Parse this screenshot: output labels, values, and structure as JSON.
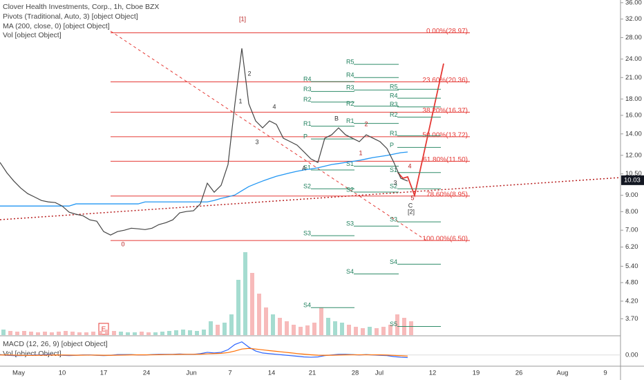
{
  "chart_data": {
    "type": "line",
    "log_scale": true,
    "legend": [
      "Clover Health Investments, Corp., 1h, Cboe BZX",
      "Pivots (Traditional, Auto, 3) [object Object]",
      "MA (200, close, 0) [object Object]",
      "Vol [object Object]"
    ],
    "ylim": [
      3.29,
      36.7
    ],
    "yticks": [
      {
        "value": 36,
        "label": "36.00"
      },
      {
        "value": 32,
        "label": "32.00"
      },
      {
        "value": 28,
        "label": "28.00"
      },
      {
        "value": 24,
        "label": "24.00"
      },
      {
        "value": 21,
        "label": "21.00"
      },
      {
        "value": 18,
        "label": "18.00"
      },
      {
        "value": 16,
        "label": "16.00"
      },
      {
        "value": 14,
        "label": "14.00"
      },
      {
        "value": 12,
        "label": "12.00"
      },
      {
        "value": 10.5,
        "label": "10.50"
      },
      {
        "value": 9,
        "label": "9.00"
      },
      {
        "value": 8,
        "label": "8.00"
      },
      {
        "value": 7,
        "label": "7.00"
      },
      {
        "value": 6.2,
        "label": "6.20"
      },
      {
        "value": 5.4,
        "label": "5.40"
      },
      {
        "value": 4.8,
        "label": "4.80"
      },
      {
        "value": 4.2,
        "label": "4.20"
      },
      {
        "value": 3.7,
        "label": "3.70"
      }
    ],
    "last_price": {
      "value": 10.03,
      "label": "10.03"
    },
    "x_labels": [
      "May",
      "10",
      "17",
      "24",
      "Jun",
      "7",
      "14",
      "21",
      "28",
      "Jul",
      "12",
      "19",
      "26",
      "Aug",
      "9"
    ],
    "price": {
      "color": "#444444",
      "values": [
        11.4,
        10.58,
        9.97,
        9.48,
        9.11,
        8.89,
        8.67,
        8.58,
        8.54,
        8.33,
        7.97,
        7.85,
        7.77,
        7.54,
        7.47,
        6.93,
        6.76,
        6.93,
        7.0,
        7.1,
        7.07,
        7.03,
        7.1,
        7.29,
        7.39,
        7.54,
        7.93,
        8.01,
        8.05,
        8.46,
        9.82,
        9.2,
        9.67,
        11.23,
        17.4,
        25.92,
        17.4,
        15.37,
        14.62,
        15.37,
        14.99,
        13.57,
        13.24,
        12.91,
        12.29,
        11.69,
        11.4,
        13.57,
        13.91,
        14.62,
        13.91,
        13.57,
        13.24,
        13.91,
        13.57,
        13.24,
        12.6,
        11.4,
        10.17,
        9.97
      ]
    },
    "ma": {
      "color": "#2196f3",
      "values": [
        8.33,
        8.33,
        8.33,
        8.33,
        8.33,
        8.33,
        8.33,
        8.33,
        8.33,
        8.33,
        8.33,
        8.46,
        8.46,
        8.46,
        8.46,
        8.46,
        8.46,
        8.46,
        8.46,
        8.46,
        8.46,
        8.58,
        8.58,
        8.58,
        8.58,
        8.58,
        8.58,
        8.58,
        8.58,
        8.58,
        8.58,
        8.67,
        8.8,
        8.9,
        9.02,
        9.3,
        9.58,
        9.78,
        9.97,
        10.15,
        10.32,
        10.45,
        10.58,
        10.7,
        10.8,
        10.88,
        10.97,
        11.1,
        11.23,
        11.31,
        11.4,
        11.48,
        11.57,
        11.69,
        11.81,
        11.9,
        11.99,
        12.11,
        12.23,
        12.29
      ]
    },
    "volume": {
      "color": "#8fd3c4",
      "values": [
        8,
        6,
        5,
        6,
        5,
        4,
        5,
        4,
        5,
        6,
        5,
        4,
        4,
        5,
        6,
        8,
        6,
        5,
        4,
        4,
        5,
        4,
        4,
        5,
        6,
        7,
        8,
        7,
        6,
        8,
        20,
        15,
        18,
        30,
        80,
        120,
        90,
        60,
        40,
        30,
        25,
        20,
        15,
        12,
        14,
        18,
        40,
        25,
        20,
        18,
        15,
        12,
        10,
        12,
        10,
        12,
        15,
        30,
        25,
        20
      ]
    },
    "fib_levels": [
      {
        "label": "0.00%(28.97)",
        "value": 28.97
      },
      {
        "label": "23.60%(20.36)",
        "value": 20.36
      },
      {
        "label": "38.20%(16.37)",
        "value": 16.37
      },
      {
        "label": "50.00%(13.72)",
        "value": 13.72
      },
      {
        "label": "61.80%(11.50)",
        "value": 11.5
      },
      {
        "label": "78.60%(8.95)",
        "value": 8.95
      },
      {
        "label": "100.00%(6.50)",
        "value": 6.5
      }
    ],
    "pivots": [
      {
        "levels": [
          {
            "label": "R4",
            "value": 20.4
          },
          {
            "label": "R3",
            "value": 19.0
          },
          {
            "label": "R2",
            "value": 17.6
          },
          {
            "label": "R1",
            "value": 14.8
          },
          {
            "label": "P",
            "value": 13.5
          },
          {
            "label": "S1",
            "value": 10.8
          },
          {
            "label": "S2",
            "value": 9.43
          },
          {
            "label": "S3",
            "value": 6.73
          },
          {
            "label": "S4",
            "value": 4.01
          }
        ]
      },
      {
        "levels": [
          {
            "label": "R5",
            "value": 23.1
          },
          {
            "label": "R4",
            "value": 21.0
          },
          {
            "label": "R3",
            "value": 19.2
          },
          {
            "label": "R2",
            "value": 17.1
          },
          {
            "label": "R1",
            "value": 15.1
          },
          {
            "label": "S1",
            "value": 11.1
          },
          {
            "label": "S2",
            "value": 9.21
          },
          {
            "label": "S3",
            "value": 7.21
          },
          {
            "label": "S4",
            "value": 5.11
          }
        ]
      },
      {
        "levels": [
          {
            "label": "R5",
            "value": 19.3
          },
          {
            "label": "R4",
            "value": 18.1
          },
          {
            "label": "R3",
            "value": 17.0
          },
          {
            "label": "R2",
            "value": 15.8
          },
          {
            "label": "R1",
            "value": 13.8
          },
          {
            "label": "P",
            "value": 12.7
          },
          {
            "label": "S1",
            "value": 10.6
          },
          {
            "label": "S2",
            "value": 9.43
          },
          {
            "label": "S3",
            "value": 7.43
          },
          {
            "label": "S4",
            "value": 5.48
          },
          {
            "label": "S5",
            "value": 3.5
          }
        ]
      }
    ],
    "wave_labels": [
      "[1]",
      "2",
      "1",
      "4",
      "3",
      "B",
      "A",
      "1",
      "2",
      "4",
      "3",
      "5",
      "C",
      "[2]",
      "0"
    ],
    "earnings_label": "E",
    "macd_title": "MACD (12, 26, 9) [object Object]",
    "macd_vol_title": "Vol [object Object]",
    "macd_ylim": [
      -1.5,
      2.5
    ],
    "macd_yticks": [
      {
        "value": 0,
        "label": "0.00"
      }
    ],
    "macd": {
      "color": "#2962ff",
      "values": [
        0.05,
        -0.05,
        -0.1,
        -0.1,
        -0.05,
        0,
        0,
        0.05,
        0,
        -0.05,
        -0.1,
        -0.05,
        0,
        0,
        -0.05,
        -0.1,
        -0.05,
        0.05,
        0.05,
        0.05,
        0,
        0,
        0.05,
        0.1,
        0.1,
        0.1,
        0.15,
        0.1,
        0.1,
        0.2,
        0.4,
        0.3,
        0.4,
        0.8,
        1.6,
        2.0,
        1.2,
        0.6,
        0.3,
        0.2,
        0.1,
        0,
        -0.1,
        -0.2,
        -0.3,
        -0.35,
        -0.3,
        -0.1,
        0,
        0.1,
        0.1,
        0.05,
        0,
        0.05,
        0,
        -0.05,
        -0.1,
        -0.25,
        -0.35,
        -0.4
      ]
    },
    "signal": {
      "color": "#ff6d00",
      "values": [
        0,
        0,
        -0.03,
        -0.05,
        -0.06,
        -0.05,
        -0.04,
        -0.02,
        0,
        -0.01,
        -0.03,
        -0.04,
        -0.03,
        -0.02,
        -0.03,
        -0.05,
        -0.05,
        -0.03,
        -0.01,
        0.01,
        0.01,
        0.01,
        0.02,
        0.04,
        0.06,
        0.07,
        0.09,
        0.1,
        0.1,
        0.12,
        0.18,
        0.21,
        0.25,
        0.36,
        0.6,
        0.9,
        1.0,
        0.9,
        0.78,
        0.66,
        0.55,
        0.44,
        0.33,
        0.22,
        0.12,
        0.03,
        -0.04,
        -0.05,
        -0.04,
        -0.01,
        0.01,
        0.02,
        0.02,
        0.02,
        0.02,
        0.01,
        -0.01,
        -0.06,
        -0.12,
        -0.18
      ]
    }
  }
}
